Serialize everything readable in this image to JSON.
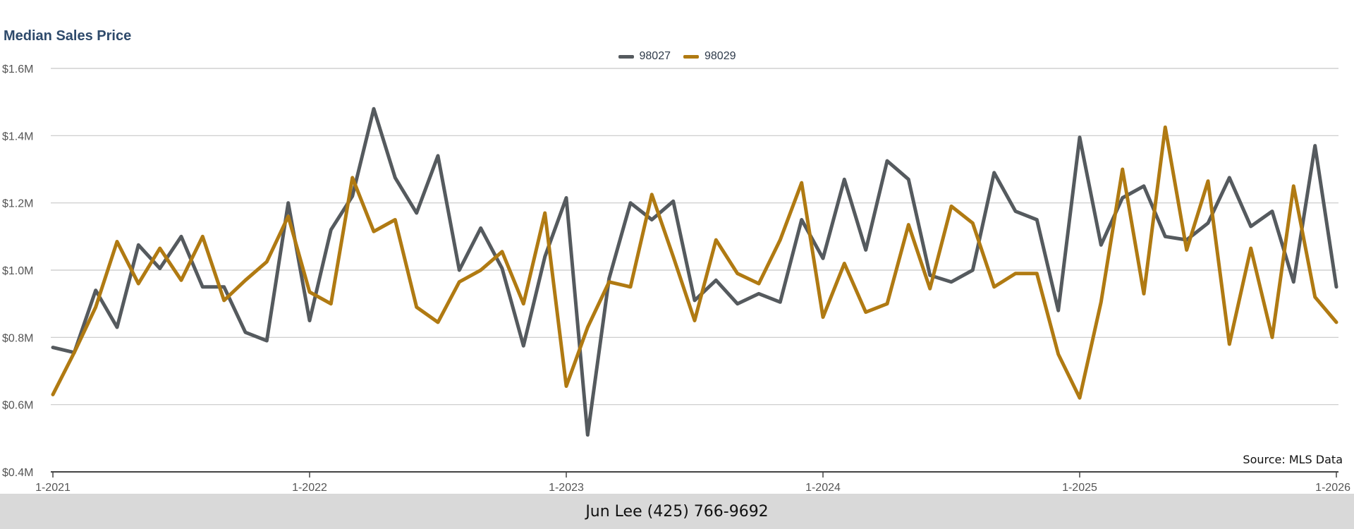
{
  "chart_data": {
    "type": "line",
    "title": "Median Sales Price",
    "xlabel": "",
    "ylabel": "",
    "ylim": [
      400000,
      1600000
    ],
    "y_ticks": [
      400000,
      600000,
      800000,
      1000000,
      1200000,
      1400000,
      1600000
    ],
    "y_tick_labels": [
      "$0.4M",
      "$0.6M",
      "$0.8M",
      "$1.0M",
      "$1.2M",
      "$1.4M",
      "$1.6M"
    ],
    "x_tick_labels": [
      "1-2021",
      "1-2022",
      "1-2023",
      "1-2024",
      "1-2025",
      "1-2026"
    ],
    "grid": true,
    "legend_position": "top-center",
    "x": [
      "2021-01",
      "2021-02",
      "2021-03",
      "2021-04",
      "2021-05",
      "2021-06",
      "2021-07",
      "2021-08",
      "2021-09",
      "2021-10",
      "2021-11",
      "2021-12",
      "2022-01",
      "2022-02",
      "2022-03",
      "2022-04",
      "2022-05",
      "2022-06",
      "2022-07",
      "2022-08",
      "2022-09",
      "2022-10",
      "2022-11",
      "2022-12",
      "2023-01",
      "2023-02",
      "2023-03",
      "2023-04",
      "2023-05",
      "2023-06",
      "2023-07",
      "2023-08",
      "2023-09",
      "2023-10",
      "2023-11",
      "2023-12",
      "2024-01",
      "2024-02",
      "2024-03",
      "2024-04",
      "2024-05",
      "2024-06",
      "2024-07",
      "2024-08",
      "2024-09",
      "2024-10",
      "2024-11",
      "2024-12",
      "2025-01",
      "2025-02",
      "2025-03",
      "2025-04",
      "2025-05",
      "2025-06",
      "2025-07",
      "2025-08",
      "2025-09",
      "2025-10",
      "2025-11",
      "2025-12",
      "2026-01"
    ],
    "series": [
      {
        "name": "98027",
        "color": "#555a5e",
        "values": [
          770000,
          755000,
          940000,
          830000,
          1075000,
          1005000,
          1100000,
          950000,
          950000,
          815000,
          790000,
          1200000,
          850000,
          1120000,
          1220000,
          1480000,
          1275000,
          1170000,
          1340000,
          1000000,
          1125000,
          1005000,
          775000,
          1040000,
          1215000,
          510000,
          975000,
          1200000,
          1150000,
          1205000,
          910000,
          970000,
          900000,
          930000,
          905000,
          1150000,
          1035000,
          1270000,
          1060000,
          1325000,
          1270000,
          985000,
          965000,
          1000000,
          1290000,
          1175000,
          1150000,
          880000,
          1395000,
          1075000,
          1215000,
          1250000,
          1100000,
          1090000,
          1140000,
          1275000,
          1130000,
          1175000,
          965000,
          1370000,
          950000
        ]
      },
      {
        "name": "98029",
        "color": "#b07a12",
        "values": [
          630000,
          755000,
          890000,
          1085000,
          960000,
          1065000,
          970000,
          1100000,
          910000,
          970000,
          1025000,
          1160000,
          935000,
          900000,
          1275000,
          1115000,
          1150000,
          890000,
          845000,
          965000,
          1000000,
          1055000,
          900000,
          1170000,
          655000,
          830000,
          965000,
          950000,
          1225000,
          1040000,
          850000,
          1090000,
          990000,
          960000,
          1090000,
          1260000,
          860000,
          1020000,
          875000,
          900000,
          1135000,
          945000,
          1190000,
          1140000,
          950000,
          990000,
          990000,
          750000,
          620000,
          905000,
          1300000,
          930000,
          1425000,
          1060000,
          1265000,
          780000,
          1065000,
          800000,
          1250000,
          920000,
          845000
        ]
      }
    ],
    "annotations": [
      "Source: MLS Data"
    ]
  },
  "footer": {
    "contact": "Jun Lee (425) 766-9692"
  }
}
